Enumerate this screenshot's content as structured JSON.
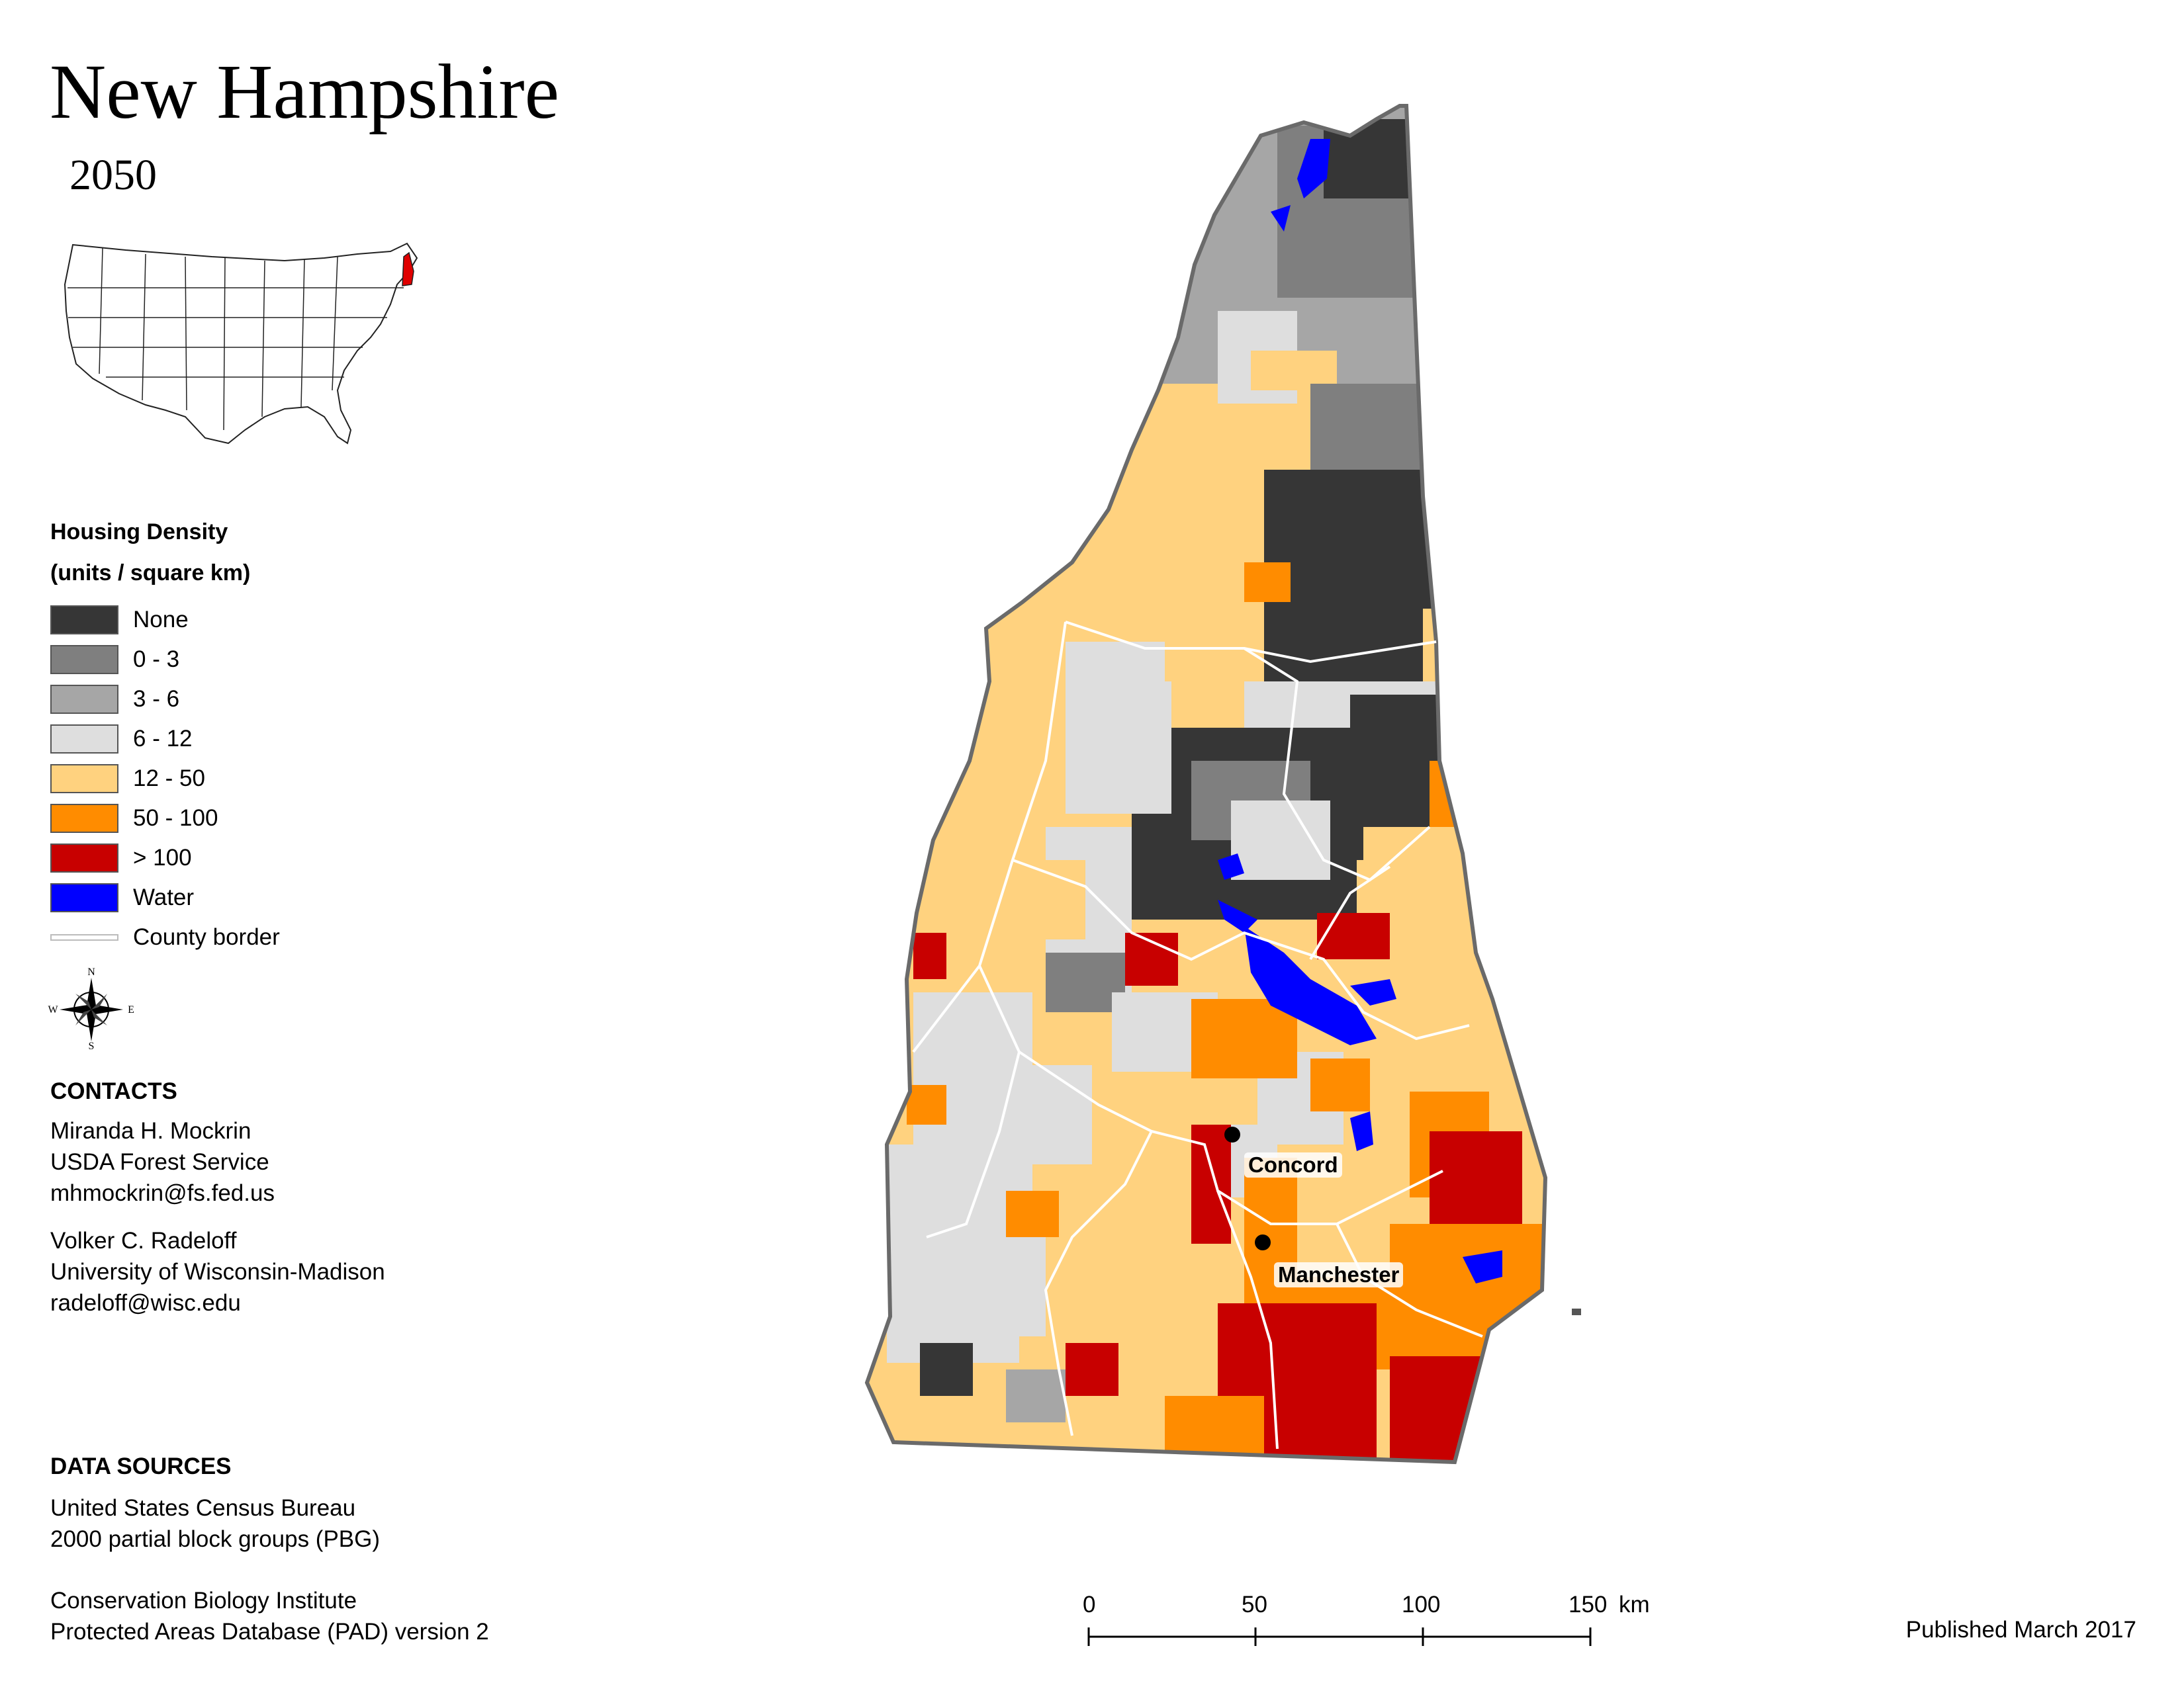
{
  "header": {
    "title": "New Hampshire",
    "year": "2050"
  },
  "legend": {
    "title_line1": "Housing Density",
    "title_line2": "(units / square km)",
    "items": [
      {
        "label": "None",
        "color": "#363636"
      },
      {
        "label": "0 - 3",
        "color": "#7f7f7f"
      },
      {
        "label": "3 - 6",
        "color": "#a6a6a6"
      },
      {
        "label": "6 - 12",
        "color": "#dedede"
      },
      {
        "label": "12 - 50",
        "color": "#ffd27f"
      },
      {
        "label": "50 - 100",
        "color": "#ff8c00"
      },
      {
        "label": "> 100",
        "color": "#c80000"
      },
      {
        "label": "Water",
        "color": "#0000ff"
      },
      {
        "label": "County border",
        "color": "#d0d0d0"
      }
    ]
  },
  "compass": {
    "n": "N",
    "s": "S",
    "e": "E",
    "w": "W"
  },
  "contacts": {
    "heading": "CONTACTS",
    "person1": {
      "name": "Miranda H. Mockrin",
      "org": "USDA Forest Service",
      "email": "mhmockrin@fs.fed.us"
    },
    "person2": {
      "name": "Volker C. Radeloff",
      "org": "University of Wisconsin-Madison",
      "email": "radeloff@wisc.edu"
    }
  },
  "data_sources": {
    "heading": "DATA SOURCES",
    "line1": "United States Census Bureau",
    "line2": "2000 partial block groups (PBG)",
    "line3": "Conservation Biology Institute",
    "line4": "Protected Areas Database (PAD) version 2"
  },
  "map": {
    "cities": [
      {
        "name": "Concord"
      },
      {
        "name": "Manchester"
      }
    ]
  },
  "scale_bar": {
    "labels": [
      "0",
      "50",
      "100",
      "150"
    ],
    "unit": "km"
  },
  "footer": {
    "published": "Published March 2017"
  }
}
